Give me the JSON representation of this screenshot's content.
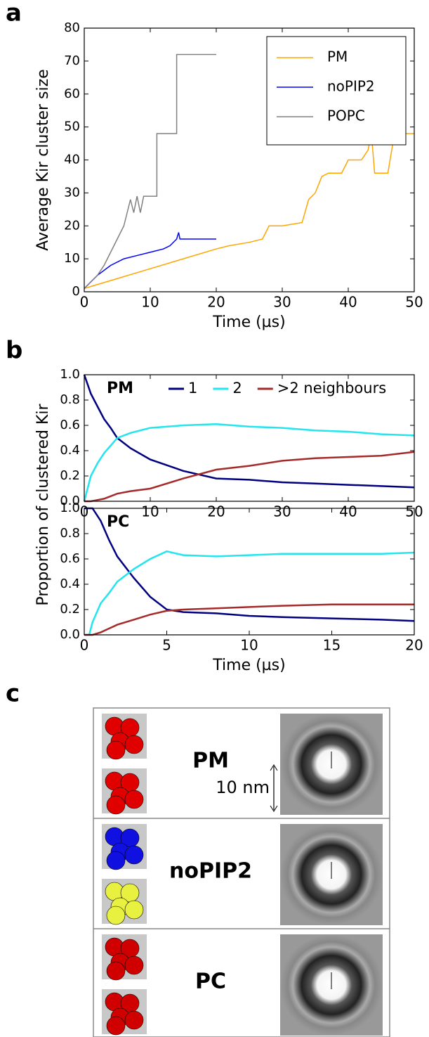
{
  "chart_data": [
    {
      "type": "line",
      "panel": "a",
      "xlabel": "Time (µs)",
      "ylabel": "Average Kir cluster size",
      "xlim": [
        0,
        50
      ],
      "xticks": [
        0,
        10,
        20,
        30,
        40,
        50
      ],
      "ylim": [
        0,
        80
      ],
      "yticks": [
        0,
        10,
        20,
        30,
        40,
        50,
        60,
        70,
        80
      ],
      "legend": "upper right",
      "series": [
        {
          "name": "PM",
          "color": "#ffa500",
          "x": [
            0,
            5,
            10,
            15,
            20,
            22,
            25,
            27,
            28,
            30,
            33,
            34,
            35,
            36,
            37,
            38,
            39,
            40,
            42,
            43,
            43.5,
            44,
            45,
            46,
            47,
            48,
            50
          ],
          "values": [
            1,
            4,
            7,
            10,
            13,
            14,
            15,
            16,
            20,
            20,
            21,
            28,
            30,
            35,
            36,
            36,
            36,
            40,
            40,
            43,
            48,
            36,
            36,
            36,
            48,
            48,
            48
          ]
        },
        {
          "name": "noPIP2",
          "color": "#0000ff",
          "x": [
            0,
            2,
            4,
            6,
            8,
            10,
            12,
            13,
            14,
            14.3,
            14.5,
            20
          ],
          "values": [
            1,
            5,
            8,
            10,
            11,
            12,
            13,
            14,
            16,
            18,
            16,
            16
          ]
        },
        {
          "name": "POPC",
          "color": "#808080",
          "x": [
            0,
            2,
            3,
            4,
            5,
            6,
            6.5,
            7,
            7.5,
            8,
            8.5,
            9,
            10,
            11,
            11,
            14,
            14,
            20
          ],
          "values": [
            1,
            5,
            8,
            12,
            16,
            20,
            24,
            28,
            24,
            29,
            24,
            29,
            29,
            29,
            48,
            48,
            72,
            72
          ]
        }
      ]
    },
    {
      "type": "line",
      "panel": "b",
      "ylabel": "Proportion of clustered Kir",
      "annotation": {
        "text": "PM",
        "color": "#ffa500"
      },
      "xlim": [
        0,
        50
      ],
      "xticks": [
        0,
        10,
        20,
        30,
        40,
        50
      ],
      "ylim": [
        0,
        1
      ],
      "yticks": [
        {
          "value": 0,
          "label": "0.0"
        },
        0.2,
        0.4,
        0.6,
        0.8,
        {
          "value": 1,
          "label": "1.0"
        }
      ],
      "legend": "upper right",
      "legend_columns": 3,
      "series": [
        {
          "name": "1",
          "color": "#000080",
          "x": [
            0,
            1,
            2,
            3,
            4,
            5,
            7,
            10,
            15,
            20,
            25,
            30,
            35,
            40,
            45,
            50
          ],
          "values": [
            1,
            0.85,
            0.75,
            0.65,
            0.58,
            0.5,
            0.42,
            0.33,
            0.24,
            0.18,
            0.17,
            0.15,
            0.14,
            0.13,
            0.12,
            0.11
          ]
        },
        {
          "name": "2",
          "color": "#22e5ee",
          "x": [
            0,
            1,
            2,
            3,
            4,
            5,
            7,
            10,
            15,
            20,
            25,
            30,
            35,
            40,
            45,
            50
          ],
          "values": [
            0,
            0.2,
            0.3,
            0.38,
            0.44,
            0.5,
            0.54,
            0.58,
            0.6,
            0.61,
            0.59,
            0.58,
            0.56,
            0.55,
            0.53,
            0.52
          ]
        },
        {
          "name": ">2 neighbours",
          "color": "#a52a2a",
          "x": [
            0,
            1,
            2,
            3,
            4,
            5,
            7,
            10,
            15,
            20,
            25,
            30,
            35,
            40,
            45,
            50
          ],
          "values": [
            0,
            0,
            0.01,
            0.02,
            0.04,
            0.06,
            0.08,
            0.1,
            0.18,
            0.25,
            0.28,
            0.32,
            0.34,
            0.35,
            0.36,
            0.39
          ]
        }
      ]
    },
    {
      "type": "line",
      "xlabel": "Time (µs)",
      "annotation": {
        "text": "PC",
        "color": "#808080"
      },
      "xlim": [
        0,
        20
      ],
      "xticks": [
        0,
        5,
        10,
        15,
        20
      ],
      "ylim": [
        0,
        1
      ],
      "yticks": [
        {
          "value": 0,
          "label": "0.0"
        },
        0.2,
        0.4,
        0.6,
        0.8,
        {
          "value": 1,
          "label": "1.0"
        }
      ],
      "series": [
        {
          "name": "1",
          "color": "#000080",
          "x": [
            0,
            0.3,
            0.5,
            1,
            1.5,
            2,
            3,
            4,
            5,
            6,
            8,
            10,
            12,
            15,
            18,
            20
          ],
          "values": [
            1,
            1,
            1,
            0.9,
            0.75,
            0.62,
            0.45,
            0.3,
            0.2,
            0.18,
            0.17,
            0.15,
            0.14,
            0.13,
            0.12,
            0.11
          ]
        },
        {
          "name": "2",
          "color": "#22e5ee",
          "x": [
            0,
            0.3,
            0.5,
            1,
            1.5,
            2,
            3,
            4,
            5,
            6,
            8,
            10,
            12,
            15,
            18,
            20
          ],
          "values": [
            0,
            0,
            0.1,
            0.25,
            0.33,
            0.42,
            0.52,
            0.6,
            0.66,
            0.63,
            0.62,
            0.63,
            0.64,
            0.64,
            0.64,
            0.65
          ]
        },
        {
          "name": ">2 neighbours",
          "color": "#a52a2a",
          "x": [
            0,
            0.3,
            0.5,
            1,
            1.5,
            2,
            3,
            4,
            5,
            6,
            8,
            10,
            12,
            15,
            18,
            20
          ],
          "values": [
            0,
            0,
            0,
            0.02,
            0.05,
            0.08,
            0.12,
            0.16,
            0.19,
            0.2,
            0.21,
            0.22,
            0.23,
            0.24,
            0.24,
            0.24
          ]
        }
      ]
    }
  ],
  "panel_c": {
    "panel": "c",
    "scale_label": "10 nm",
    "rows": [
      {
        "label": "PM",
        "color": "#ffa500",
        "blob_colors": [
          "#e00000",
          "#e00000"
        ]
      },
      {
        "label": "noPIP2",
        "color": "#3333cc",
        "blob_colors": [
          "#1010e0",
          "#e8f040"
        ]
      },
      {
        "label": "PC",
        "color": "#808080",
        "blob_colors": [
          "#d00000",
          "#d00000"
        ]
      }
    ]
  }
}
